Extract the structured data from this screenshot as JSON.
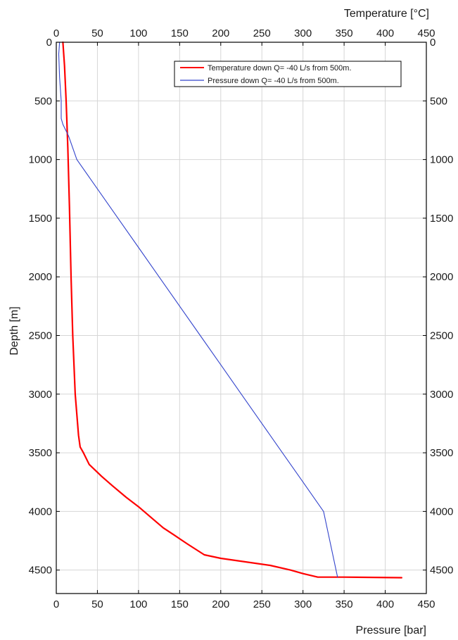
{
  "chart_data": {
    "type": "line",
    "title": "",
    "top_axis_label": "Temperature [°C]",
    "bottom_axis_label": "Pressure [bar]",
    "left_axis_label": "Depth [m]",
    "x_ticks": [
      "0",
      "50",
      "100",
      "150",
      "200",
      "250",
      "300",
      "350",
      "400",
      "450"
    ],
    "depth_ticks": [
      "0",
      "500",
      "1000",
      "1500",
      "2000",
      "2500",
      "3000",
      "3500",
      "4000",
      "4500"
    ],
    "xlim": [
      0,
      450
    ],
    "depth_lim": [
      0,
      4700
    ],
    "grid": true,
    "legend_position": "top-right",
    "series": [
      {
        "name": "Temperature down Q= -40 L/s from 500m.",
        "color": "#ff0000",
        "x_axis": "top",
        "points": [
          [
            8,
            0
          ],
          [
            10,
            200
          ],
          [
            12,
            500
          ],
          [
            14,
            900
          ],
          [
            16,
            1400
          ],
          [
            18,
            2000
          ],
          [
            20,
            2500
          ],
          [
            23,
            3000
          ],
          [
            27,
            3350
          ],
          [
            29,
            3450
          ],
          [
            33,
            3500
          ],
          [
            40,
            3600
          ],
          [
            55,
            3700
          ],
          [
            68,
            3780
          ],
          [
            85,
            3880
          ],
          [
            100,
            3960
          ],
          [
            115,
            4050
          ],
          [
            130,
            4140
          ],
          [
            143,
            4200
          ],
          [
            160,
            4280
          ],
          [
            180,
            4370
          ],
          [
            200,
            4400
          ],
          [
            230,
            4430
          ],
          [
            260,
            4460
          ],
          [
            285,
            4500
          ],
          [
            300,
            4530
          ],
          [
            318,
            4560
          ],
          [
            350,
            4560
          ],
          [
            420,
            4565
          ]
        ]
      },
      {
        "name": "Pressure down Q= -40 L/s from 500m.",
        "color": "#3344cc",
        "x_axis": "bottom",
        "points": [
          [
            4,
            0
          ],
          [
            3,
            100
          ],
          [
            4,
            300
          ],
          [
            6,
            500
          ],
          [
            6,
            650
          ],
          [
            8,
            700
          ],
          [
            15,
            800
          ],
          [
            25,
            1000
          ],
          [
            50,
            1250
          ],
          [
            75,
            1500
          ],
          [
            100,
            1750
          ],
          [
            125,
            2000
          ],
          [
            150,
            2250
          ],
          [
            175,
            2500
          ],
          [
            200,
            2750
          ],
          [
            225,
            3000
          ],
          [
            250,
            3250
          ],
          [
            275,
            3500
          ],
          [
            300,
            3750
          ],
          [
            325,
            4000
          ],
          [
            342,
            4560
          ]
        ]
      }
    ]
  }
}
